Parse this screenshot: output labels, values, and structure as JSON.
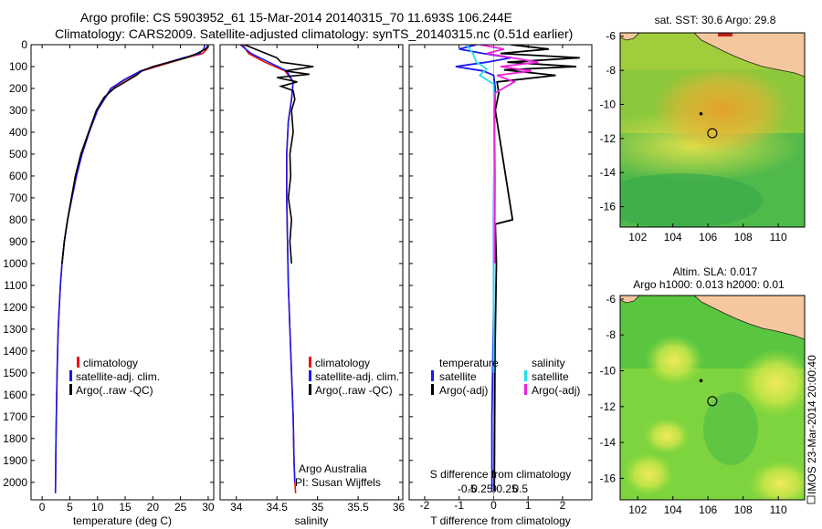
{
  "header": {
    "title_line1": "Argo profile: CS 5903952_61 15-Mar-2014 20140315_70 11.693S 106.244E",
    "title_line2": "Climatology: CARS2009. Satellite-adjusted climatology: synTS_20140315.nc (0.51d earlier)"
  },
  "colors": {
    "climatology": "#ee1111",
    "satellite": "#1a1aee",
    "argo": "#000000",
    "satellite_s": "#22e0e8",
    "argo_s": "#ee22dd",
    "land": "#f5c79e"
  },
  "chart_data": [
    {
      "type": "line",
      "panel": "temperature",
      "xlabel": "temperature (deg C)",
      "ylabel": "",
      "xlim": [
        -2,
        31
      ],
      "ylim": [
        2080,
        0
      ],
      "xticks": [
        "0",
        "5",
        "10",
        "15",
        "20",
        "25",
        "30"
      ],
      "yticks": [
        "0",
        "100",
        "200",
        "300",
        "400",
        "500",
        "600",
        "700",
        "800",
        "900",
        "1000",
        "1100",
        "1200",
        "1300",
        "1400",
        "1500",
        "1600",
        "1700",
        "1800",
        "1900",
        "2000"
      ],
      "legend": [
        "climatology",
        "satellite-adj. clim.",
        "Argo(..raw -QC)"
      ],
      "series": [
        {
          "name": "climatology",
          "color": "#ee1111",
          "x": [
            29.9,
            29.8,
            29,
            26,
            22,
            18,
            15,
            12.5,
            10,
            8.5,
            7.2,
            6.2,
            5.4,
            4.6,
            4.0,
            3.6,
            3.3,
            3.1,
            2.9,
            2.7,
            2.5,
            2.4
          ],
          "y": [
            0,
            20,
            40,
            60,
            90,
            120,
            160,
            200,
            300,
            400,
            500,
            600,
            700,
            800,
            900,
            1000,
            1100,
            1200,
            1300,
            1500,
            1800,
            2050
          ]
        },
        {
          "name": "satellite-adj. clim.",
          "color": "#1a1aee",
          "x": [
            29.4,
            29.2,
            28.5,
            25.5,
            21.5,
            17.8,
            14.8,
            12.4,
            10,
            8.5,
            7.2,
            6.2,
            5.4,
            4.6,
            4.0,
            3.6,
            3.3,
            3.1,
            2.9,
            2.7,
            2.5,
            2.4
          ],
          "y": [
            0,
            20,
            40,
            60,
            90,
            120,
            160,
            200,
            300,
            400,
            500,
            600,
            700,
            800,
            900,
            1000,
            1100,
            1200,
            1300,
            1500,
            1800,
            2050
          ]
        },
        {
          "name": "Argo(..raw -QC)",
          "color": "#000000",
          "x": [
            30.1,
            29.5,
            28,
            26,
            23,
            20,
            18,
            17,
            15,
            13,
            11.2,
            9.8,
            8.4,
            7.0,
            6.0,
            5.3,
            4.6,
            4.0,
            3.6
          ],
          "y": [
            5,
            20,
            40,
            60,
            80,
            100,
            120,
            140,
            170,
            200,
            240,
            300,
            400,
            500,
            600,
            700,
            800,
            900,
            1000
          ]
        }
      ]
    },
    {
      "type": "line",
      "panel": "salinity",
      "xlabel": "salinity",
      "xlim": [
        33.8,
        36.05
      ],
      "ylim": [
        2080,
        0
      ],
      "xticks": [
        "34",
        "34.5",
        "35",
        "35.5",
        "36"
      ],
      "legend": [
        "climatology",
        "satellite-adj. clim.",
        "Argo(..raw -QC)"
      ],
      "annotation_line1": "Argo Australia",
      "annotation_line2": "PI: Susan Wijffels",
      "series": [
        {
          "name": "climatology",
          "color": "#ee1111",
          "x": [
            34.08,
            34.15,
            34.35,
            34.6,
            34.7,
            34.68,
            34.64,
            34.62,
            34.62,
            34.63,
            34.64,
            34.66,
            34.68,
            34.7,
            34.71,
            34.72,
            34.73
          ],
          "y": [
            0,
            40,
            80,
            120,
            170,
            250,
            350,
            500,
            700,
            900,
            1100,
            1300,
            1500,
            1700,
            1900,
            2000,
            2050
          ]
        },
        {
          "name": "satellite-adj. clim.",
          "color": "#1a1aee",
          "x": [
            34.05,
            34.18,
            34.4,
            34.62,
            34.7,
            34.68,
            34.64,
            34.62,
            34.62,
            34.63,
            34.64,
            34.66,
            34.68,
            34.7,
            34.71,
            34.72
          ],
          "y": [
            0,
            40,
            80,
            120,
            170,
            250,
            350,
            500,
            700,
            900,
            1100,
            1300,
            1500,
            1700,
            1900,
            2000
          ]
        },
        {
          "name": "Argo(..raw -QC)",
          "color": "#000000",
          "x": [
            34.1,
            34.3,
            34.5,
            34.55,
            34.95,
            34.6,
            34.9,
            34.5,
            34.75,
            34.55,
            34.7,
            34.72,
            34.68,
            34.7,
            34.66,
            34.67,
            34.64,
            34.68,
            34.66,
            34.68
          ],
          "y": [
            0,
            30,
            60,
            80,
            100,
            120,
            135,
            150,
            170,
            190,
            210,
            250,
            300,
            400,
            500,
            600,
            700,
            800,
            900,
            1000
          ]
        }
      ]
    },
    {
      "type": "line",
      "panel": "difference",
      "xlabel": "T difference from climatology",
      "xlabel_top": "S difference from climatology",
      "xlim": [
        -2.45,
        2.85
      ],
      "ylim": [
        2080,
        0
      ],
      "xticks_bottom": [
        "-2",
        "-1",
        "0",
        "1",
        "2"
      ],
      "xticks_top": [
        "-0.5",
        "-0.25",
        "0",
        "0.25",
        "0.5"
      ],
      "legend_left_title": "temperature",
      "legend_left": [
        "satellite",
        "Argo(-adj)"
      ],
      "legend_right_title": "salinity",
      "legend_right": [
        "satellite",
        "Argo(-adj)"
      ],
      "series": [
        {
          "name": "T satellite",
          "color": "#1a1aee",
          "x": [
            -0.5,
            -1,
            -0.3,
            0.5,
            -0.2,
            -1.1,
            -0.3,
            0,
            0.05,
            0.02,
            0,
            0,
            -0.05,
            -0.05
          ],
          "y": [
            0,
            20,
            40,
            60,
            80,
            100,
            120,
            140,
            200,
            400,
            800,
            1200,
            1700,
            2040
          ]
        },
        {
          "name": "T Argo(-adj)",
          "color": "#000000",
          "x": [
            0.5,
            1.6,
            0.2,
            2.5,
            0.4,
            2.4,
            0.3,
            1.8,
            0.1,
            0.15,
            0.05,
            0.55,
            0.05,
            0.08,
            0.04,
            0.02
          ],
          "y": [
            0,
            20,
            40,
            60,
            80,
            100,
            115,
            140,
            170,
            220,
            300,
            800,
            820,
            1000,
            1400,
            2040
          ]
        },
        {
          "name": "S satellite",
          "color": "#22e0e8",
          "x": [
            -0.8,
            -0.6,
            -0.5,
            -0.2,
            -0.4,
            0,
            0.02,
            0.01,
            0,
            0
          ],
          "y": [
            0,
            40,
            80,
            110,
            140,
            180,
            300,
            600,
            1000,
            1500
          ]
        },
        {
          "name": "S Argo(-adj)",
          "color": "#ee22dd",
          "x": [
            -0.4,
            0.3,
            -0.2,
            1.3,
            0.2,
            1.1,
            0.1,
            0.6,
            0.05,
            0.02,
            0.04,
            0.03
          ],
          "y": [
            0,
            20,
            40,
            80,
            100,
            120,
            140,
            170,
            220,
            300,
            600,
            1000
          ]
        }
      ]
    },
    {
      "type": "heatmap",
      "panel": "sst_map",
      "title": "sat. SST: 30.6 Argo: 29.8",
      "xticks": [
        "102",
        "104",
        "106",
        "108",
        "110"
      ],
      "yticks": [
        "-6",
        "-8",
        "-10",
        "-12",
        "-14",
        "-16"
      ],
      "xlim": [
        101,
        111.5
      ],
      "ylim": [
        -17.2,
        -5.8
      ],
      "argo_marker": {
        "lon": 106.244,
        "lat": -11.693
      },
      "previous_marker": {
        "lon": 105.6,
        "lat": -10.55
      }
    },
    {
      "type": "heatmap",
      "panel": "sla_map",
      "title_line1": "Altim. SLA: 0.017",
      "title_line2": "Argo h1000: 0.013 h2000: 0.01",
      "xticks": [
        "102",
        "104",
        "106",
        "108",
        "110"
      ],
      "yticks": [
        "-6",
        "-8",
        "-10",
        "-12",
        "-14",
        "-16"
      ],
      "xlim": [
        101,
        111.5
      ],
      "ylim": [
        -17.2,
        -5.8
      ],
      "argo_marker": {
        "lon": 106.244,
        "lat": -11.693
      },
      "previous_marker": {
        "lon": 105.6,
        "lat": -10.55
      }
    }
  ],
  "footer": {
    "imos_stamp": "IMOS 23-Mar-2014 20:00:40"
  }
}
